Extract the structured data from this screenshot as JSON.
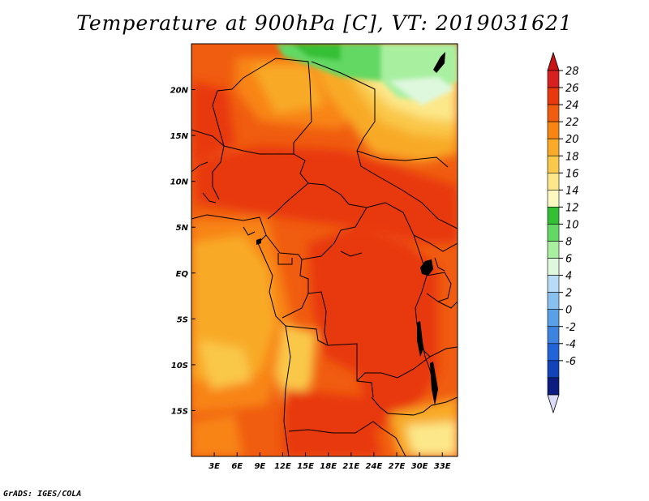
{
  "title": "Temperature at 900hPa [C], VT: 2019031621",
  "credit": "GrADS: IGES/COLA",
  "map": {
    "lon_range": [
      0,
      35
    ],
    "lat_range": [
      -20,
      25
    ],
    "lat_ticks": [
      {
        "lat": 20,
        "label": "20N"
      },
      {
        "lat": 15,
        "label": "15N"
      },
      {
        "lat": 10,
        "label": "10N"
      },
      {
        "lat": 5,
        "label": "5N"
      },
      {
        "lat": 0,
        "label": "EQ"
      },
      {
        "lat": -5,
        "label": "5S"
      },
      {
        "lat": -10,
        "label": "10S"
      },
      {
        "lat": -15,
        "label": "15S"
      }
    ],
    "lon_ticks": [
      {
        "lon": 3,
        "label": "3E"
      },
      {
        "lon": 6,
        "label": "6E"
      },
      {
        "lon": 9,
        "label": "9E"
      },
      {
        "lon": 12,
        "label": "12E"
      },
      {
        "lon": 15,
        "label": "15E"
      },
      {
        "lon": 18,
        "label": "18E"
      },
      {
        "lon": 21,
        "label": "21E"
      },
      {
        "lon": 24,
        "label": "24E"
      },
      {
        "lon": 27,
        "label": "27E"
      },
      {
        "lon": 30,
        "label": "30E"
      },
      {
        "lon": 33,
        "label": "33E"
      }
    ]
  },
  "colorbar": {
    "levels": [
      {
        "value": "28",
        "color": "#d82020"
      },
      {
        "value": "26",
        "color": "#e8380e"
      },
      {
        "value": "24",
        "color": "#f05c10"
      },
      {
        "value": "22",
        "color": "#f88414"
      },
      {
        "value": "20",
        "color": "#f8aa28"
      },
      {
        "value": "18",
        "color": "#fac84a"
      },
      {
        "value": "16",
        "color": "#fce88a"
      },
      {
        "value": "14",
        "color": "#fcf8c0"
      },
      {
        "value": "12",
        "color": "#34c034"
      },
      {
        "value": "10",
        "color": "#64d864"
      },
      {
        "value": "8",
        "color": "#a8f0a0"
      },
      {
        "value": "6",
        "color": "#def8de"
      },
      {
        "value": "4",
        "color": "#b8dcf8"
      },
      {
        "value": "2",
        "color": "#88c0f0"
      },
      {
        "value": "0",
        "color": "#58a0e8"
      },
      {
        "value": "-2",
        "color": "#3c84e0"
      },
      {
        "value": "-4",
        "color": "#2064d8"
      },
      {
        "value": "-6",
        "color": "#1044b8"
      }
    ],
    "top_triangle_color": "#c81414",
    "bottom_triangle_color": "#dcdcf8",
    "extra_band_color": "#0c1c80"
  }
}
